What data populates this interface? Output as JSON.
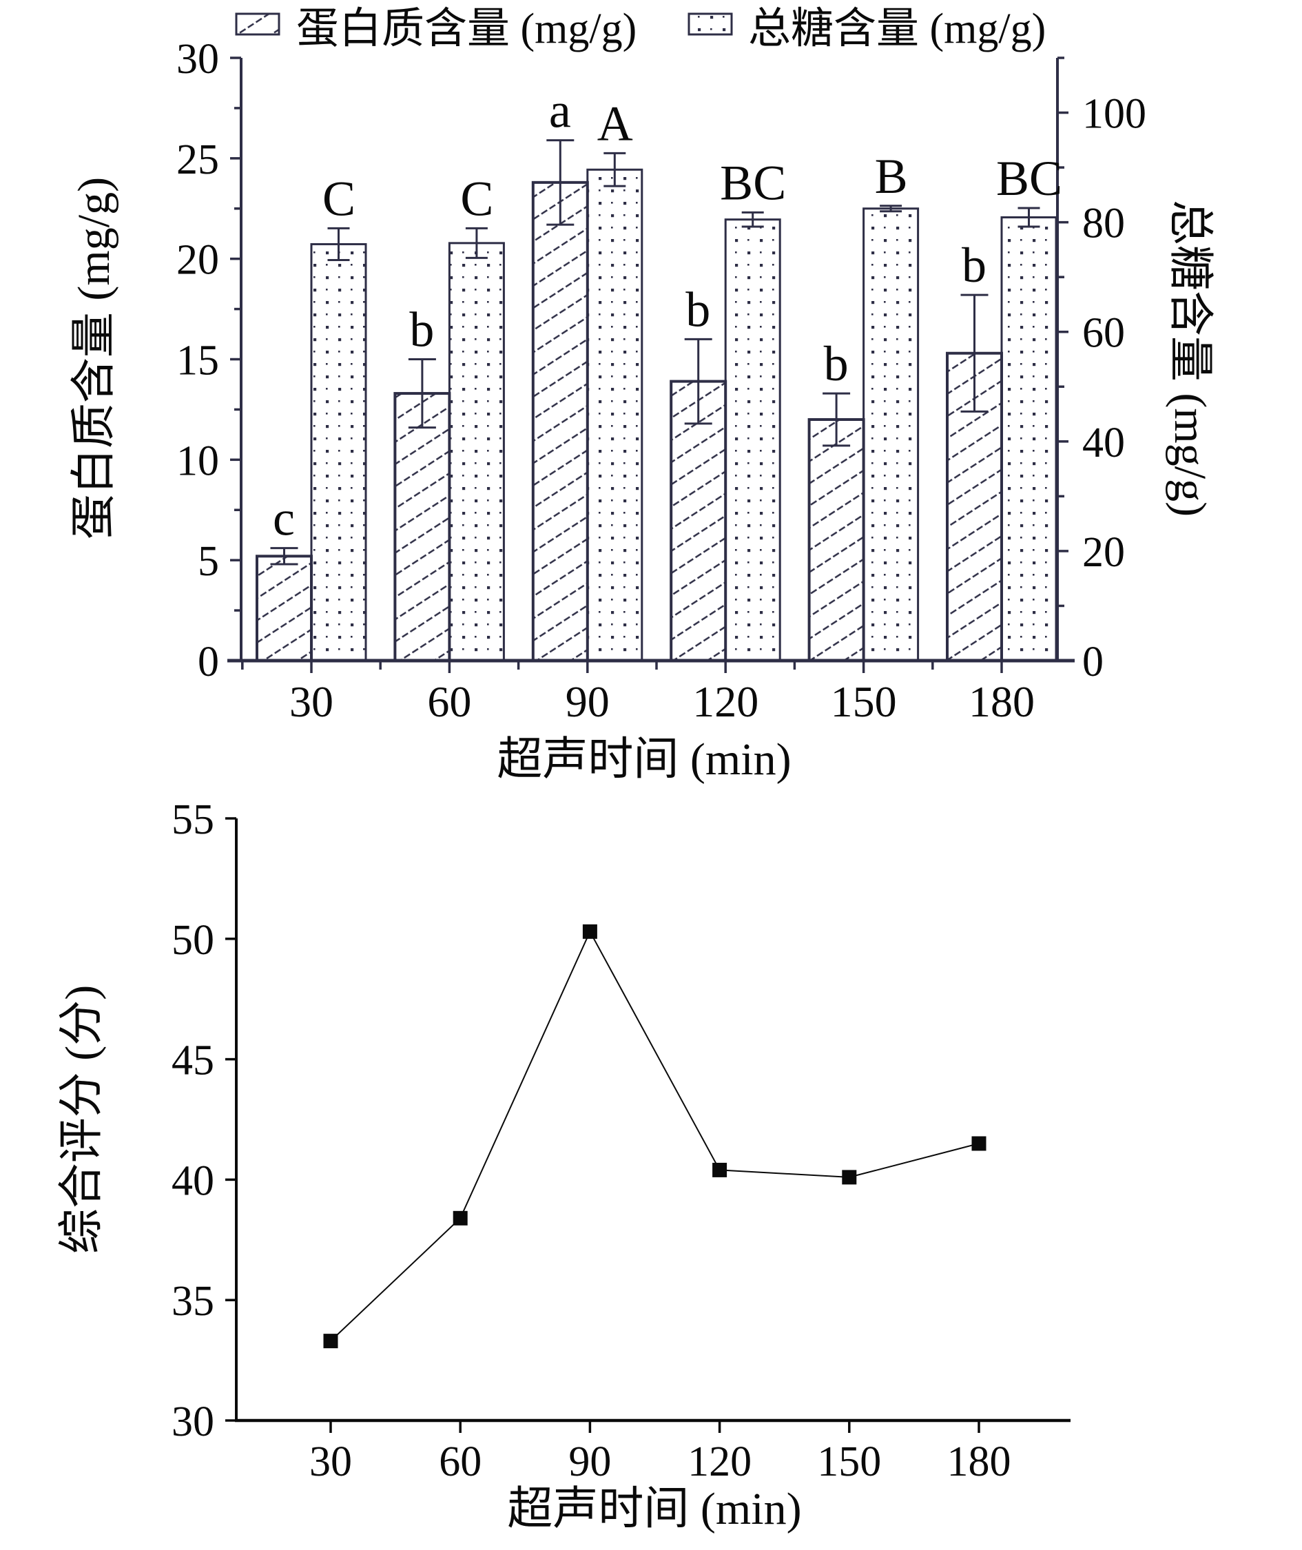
{
  "page": {
    "background": "#ffffff"
  },
  "colors": {
    "top_stroke": "#2e2e46",
    "bottom_stroke": "#0a0a0a",
    "text": "#0a0a0a"
  },
  "chart_data": [
    {
      "type": "bar",
      "title": "",
      "legend": [
        {
          "label": "蛋白质含量 (mg/g)",
          "pattern": "diagonal-hatch"
        },
        {
          "label": "总糖含量 (mg/g)",
          "pattern": "dot-grid"
        }
      ],
      "categories": [
        30,
        60,
        90,
        120,
        150,
        180
      ],
      "xlabel": "超声时间 (min)",
      "left_axis": {
        "label": "蛋白质含量 (mg/g)",
        "min": 0,
        "max": 30,
        "major_tick": 5,
        "minor_tick": 2.5,
        "tick_labels": [
          0,
          5,
          10,
          15,
          20,
          25,
          30
        ]
      },
      "right_axis": {
        "label": "总糖含量 (mg/g)",
        "min": 0,
        "max": 110,
        "major_tick": 20,
        "minor_tick": 10,
        "tick_labels": [
          0,
          20,
          40,
          60,
          80,
          100
        ]
      },
      "series": [
        {
          "name": "蛋白质含量 (mg/g)",
          "axis": "left",
          "pattern": "diagonal-hatch",
          "values": [
            5.2,
            13.3,
            23.8,
            13.9,
            12.0,
            15.3
          ],
          "errors": [
            0.4,
            1.7,
            2.1,
            2.1,
            1.3,
            2.9
          ],
          "sig_letters": [
            "c",
            "b",
            "a",
            "b",
            "b",
            "b"
          ]
        },
        {
          "name": "总糖含量 (mg/g)",
          "axis": "right",
          "pattern": "dot-grid",
          "values": [
            76.0,
            76.2,
            89.6,
            80.5,
            82.5,
            80.9
          ],
          "errors": [
            2.9,
            2.7,
            3.0,
            1.3,
            0.5,
            1.7
          ],
          "sig_letters": [
            "C",
            "C",
            "A",
            "BC",
            "B",
            "BC"
          ]
        }
      ],
      "colors": {
        "stroke": "#2e2e46",
        "text": "#0a0a0a"
      },
      "grid": false,
      "legend_position": "top"
    },
    {
      "type": "line",
      "title": "",
      "categories": [
        30,
        60,
        90,
        120,
        150,
        180
      ],
      "values": [
        33.3,
        38.4,
        50.3,
        40.4,
        40.1,
        41.5
      ],
      "xlabel": "超声时间 (min)",
      "ylabel": "综合评分 (分)",
      "ylim": [
        30,
        55
      ],
      "ytick_step": 5,
      "marker": "square",
      "grid": false,
      "colors": {
        "stroke": "#0a0a0a",
        "marker": "#0a0a0a",
        "text": "#0a0a0a"
      }
    }
  ]
}
